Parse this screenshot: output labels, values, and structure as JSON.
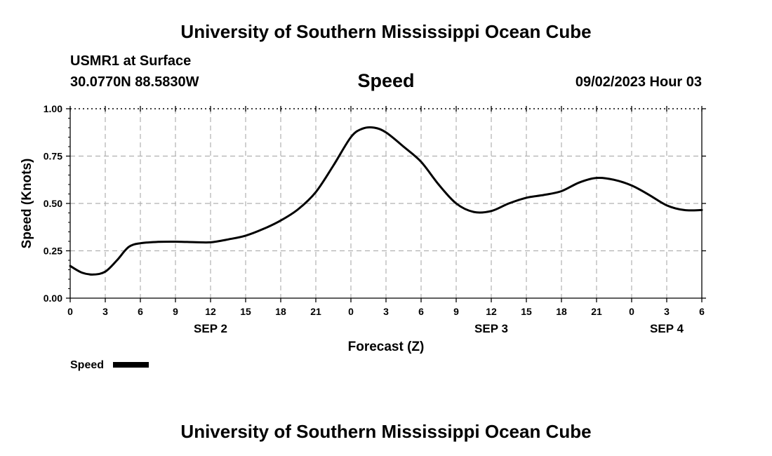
{
  "header": {
    "title": "University of Southern Mississippi Ocean Cube",
    "station": "USMR1 at Surface",
    "coordinates": "30.0770N  88.5830W",
    "variable": "Speed",
    "datetime": "09/02/2023 Hour 03"
  },
  "footer": {
    "title": "University of Southern Mississippi Ocean Cube"
  },
  "chart_data": {
    "type": "line",
    "title": "Speed",
    "xlabel": "Forecast (Z)",
    "ylabel": "Speed (Knots)",
    "ylim": [
      0,
      1
    ],
    "xlim": [
      0,
      54
    ],
    "yticks": [
      {
        "value": 0,
        "label": "0.00"
      },
      {
        "value": 0.25,
        "label": "0.25"
      },
      {
        "value": 0.5,
        "label": "0.50"
      },
      {
        "value": 0.75,
        "label": "0.75"
      },
      {
        "value": 1,
        "label": "1.00"
      }
    ],
    "xticks": [
      {
        "value": 0,
        "label": "0"
      },
      {
        "value": 3,
        "label": "3"
      },
      {
        "value": 6,
        "label": "6"
      },
      {
        "value": 9,
        "label": "9"
      },
      {
        "value": 12,
        "label": "12"
      },
      {
        "value": 15,
        "label": "15"
      },
      {
        "value": 18,
        "label": "18"
      },
      {
        "value": 21,
        "label": "21"
      },
      {
        "value": 24,
        "label": "0"
      },
      {
        "value": 27,
        "label": "3"
      },
      {
        "value": 30,
        "label": "6"
      },
      {
        "value": 33,
        "label": "9"
      },
      {
        "value": 36,
        "label": "12"
      },
      {
        "value": 39,
        "label": "15"
      },
      {
        "value": 42,
        "label": "18"
      },
      {
        "value": 45,
        "label": "21"
      },
      {
        "value": 48,
        "label": "0"
      },
      {
        "value": 51,
        "label": "3"
      },
      {
        "value": 54,
        "label": "6"
      }
    ],
    "day_labels": [
      {
        "value": 12,
        "label": "SEP 2"
      },
      {
        "value": 36,
        "label": "SEP 3"
      },
      {
        "value": 51,
        "label": "SEP 4"
      }
    ],
    "grid": true,
    "legend": {
      "position": "bottom-left",
      "entries": [
        "Speed"
      ]
    },
    "series": [
      {
        "name": "Speed",
        "color": "#000000",
        "x": [
          0,
          1,
          2,
          3,
          4,
          5,
          6,
          7.5,
          9,
          10.5,
          12,
          13.5,
          15,
          16.5,
          18,
          19.5,
          21,
          22.5,
          24,
          25,
          26,
          27,
          28.5,
          30,
          31.5,
          33,
          34.5,
          36,
          37.5,
          39,
          40.5,
          42,
          43.5,
          45,
          46.5,
          48,
          49.5,
          51,
          52.5,
          54
        ],
        "y": [
          0.17,
          0.135,
          0.125,
          0.14,
          0.2,
          0.27,
          0.29,
          0.297,
          0.298,
          0.296,
          0.295,
          0.31,
          0.33,
          0.365,
          0.41,
          0.47,
          0.56,
          0.7,
          0.85,
          0.895,
          0.9,
          0.875,
          0.8,
          0.72,
          0.6,
          0.5,
          0.455,
          0.46,
          0.5,
          0.53,
          0.545,
          0.565,
          0.61,
          0.635,
          0.625,
          0.595,
          0.545,
          0.49,
          0.465,
          0.465
        ]
      }
    ]
  }
}
